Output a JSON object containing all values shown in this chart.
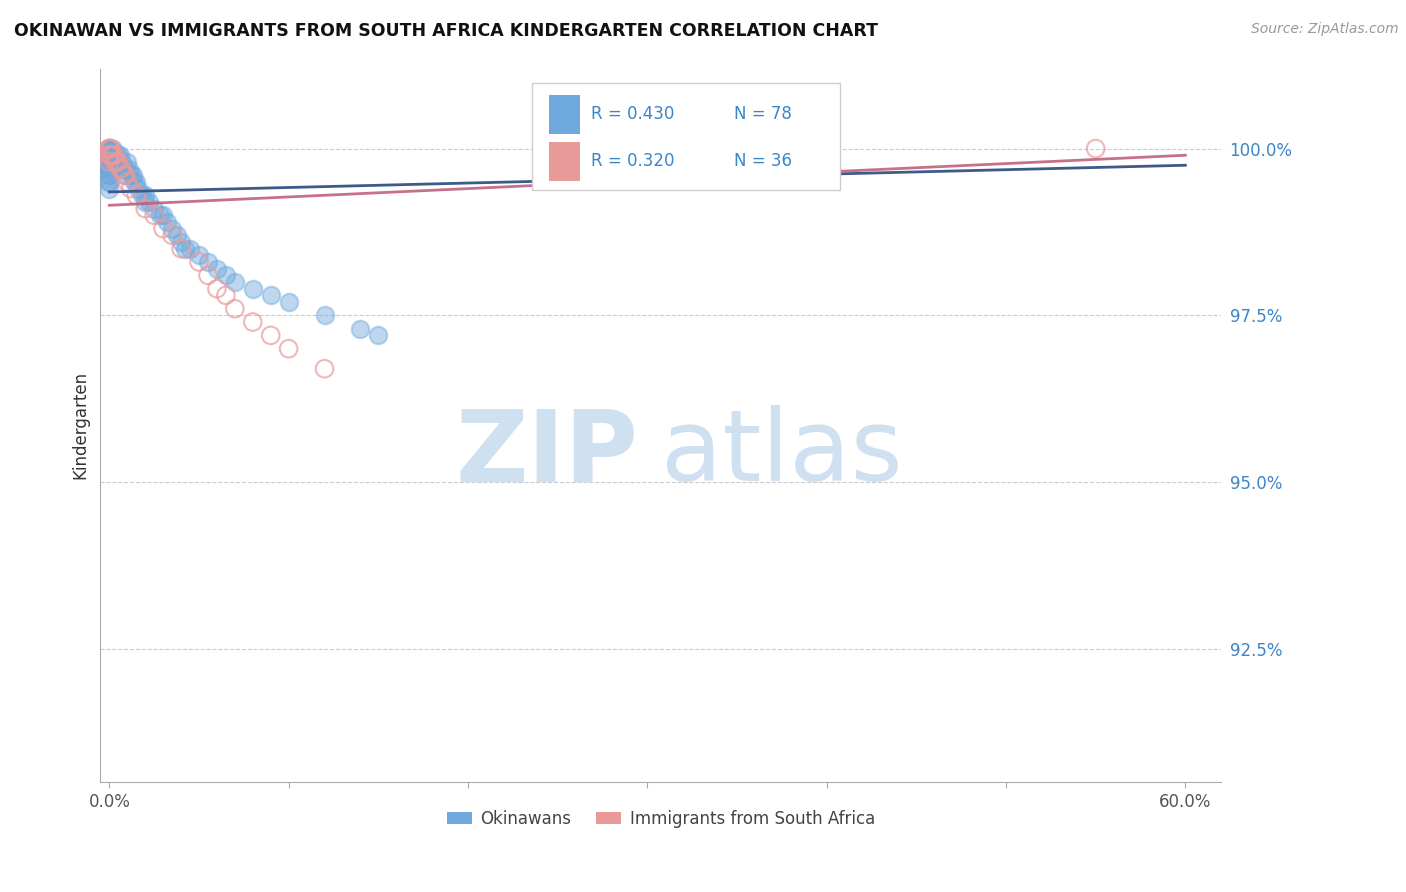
{
  "title": "OKINAWAN VS IMMIGRANTS FROM SOUTH AFRICA KINDERGARTEN CORRELATION CHART",
  "source": "Source: ZipAtlas.com",
  "ylabel": "Kindergarten",
  "ytick_labels": [
    "100.0%",
    "97.5%",
    "95.0%",
    "92.5%"
  ],
  "ytick_values": [
    1.0,
    0.975,
    0.95,
    0.925
  ],
  "xlim": [
    -0.005,
    0.62
  ],
  "ylim": [
    0.905,
    1.012
  ],
  "legend_r1": "R = 0.430",
  "legend_n1": "N = 78",
  "legend_r2": "R = 0.320",
  "legend_n2": "N = 36",
  "color_okinawan": "#6fa8dc",
  "color_sa": "#ea9999",
  "trendline_okinawan_color": "#3d5a8a",
  "trendline_sa_color": "#c06080",
  "watermark_zip_color": "#cfe0f0",
  "watermark_atlas_color": "#cfe0f0",
  "background_color": "#ffffff",
  "ok_x": [
    0.0,
    0.0,
    0.0,
    0.0,
    0.0,
    0.0,
    0.0,
    0.0,
    0.0,
    0.0,
    0.0,
    0.0,
    0.0,
    0.0,
    0.0,
    0.0,
    0.0,
    0.0,
    0.0,
    0.0,
    0.0,
    0.0,
    0.0,
    0.0,
    0.0,
    0.001,
    0.001,
    0.001,
    0.001,
    0.001,
    0.002,
    0.002,
    0.002,
    0.002,
    0.003,
    0.003,
    0.003,
    0.004,
    0.004,
    0.005,
    0.005,
    0.006,
    0.006,
    0.007,
    0.008,
    0.009,
    0.01,
    0.01,
    0.011,
    0.012,
    0.013,
    0.014,
    0.015,
    0.016,
    0.018,
    0.02,
    0.02,
    0.022,
    0.025,
    0.028,
    0.03,
    0.032,
    0.035,
    0.038,
    0.04,
    0.042,
    0.045,
    0.05,
    0.055,
    0.06,
    0.065,
    0.07,
    0.08,
    0.09,
    0.1,
    0.12,
    0.14,
    0.15
  ],
  "ok_y": [
    1.0,
    1.0,
    1.0,
    1.0,
    1.0,
    1.0,
    1.0,
    1.0,
    1.0,
    1.0,
    1.0,
    0.999,
    0.999,
    0.999,
    0.998,
    0.998,
    0.998,
    0.997,
    0.997,
    0.997,
    0.996,
    0.996,
    0.995,
    0.995,
    0.994,
    1.0,
    0.999,
    0.998,
    0.998,
    0.997,
    1.0,
    0.999,
    0.998,
    0.997,
    0.999,
    0.998,
    0.997,
    0.999,
    0.998,
    0.999,
    0.998,
    0.999,
    0.997,
    0.998,
    0.997,
    0.997,
    0.998,
    0.996,
    0.997,
    0.996,
    0.996,
    0.995,
    0.995,
    0.994,
    0.993,
    0.993,
    0.992,
    0.992,
    0.991,
    0.99,
    0.99,
    0.989,
    0.988,
    0.987,
    0.986,
    0.985,
    0.985,
    0.984,
    0.983,
    0.982,
    0.981,
    0.98,
    0.979,
    0.978,
    0.977,
    0.975,
    0.973,
    0.972
  ],
  "sa_x": [
    0.0,
    0.0,
    0.0,
    0.0,
    0.0,
    0.0,
    0.0,
    0.001,
    0.001,
    0.002,
    0.003,
    0.003,
    0.004,
    0.005,
    0.006,
    0.007,
    0.008,
    0.009,
    0.01,
    0.012,
    0.015,
    0.02,
    0.025,
    0.03,
    0.035,
    0.04,
    0.05,
    0.055,
    0.06,
    0.065,
    0.07,
    0.08,
    0.09,
    0.1,
    0.12,
    0.55
  ],
  "sa_y": [
    1.0,
    1.0,
    1.0,
    1.0,
    0.999,
    0.999,
    0.998,
    1.0,
    0.999,
    0.999,
    0.999,
    0.998,
    0.998,
    0.998,
    0.997,
    0.997,
    0.996,
    0.996,
    0.995,
    0.994,
    0.993,
    0.991,
    0.99,
    0.988,
    0.987,
    0.985,
    0.983,
    0.981,
    0.979,
    0.978,
    0.976,
    0.974,
    0.972,
    0.97,
    0.967,
    1.0
  ]
}
